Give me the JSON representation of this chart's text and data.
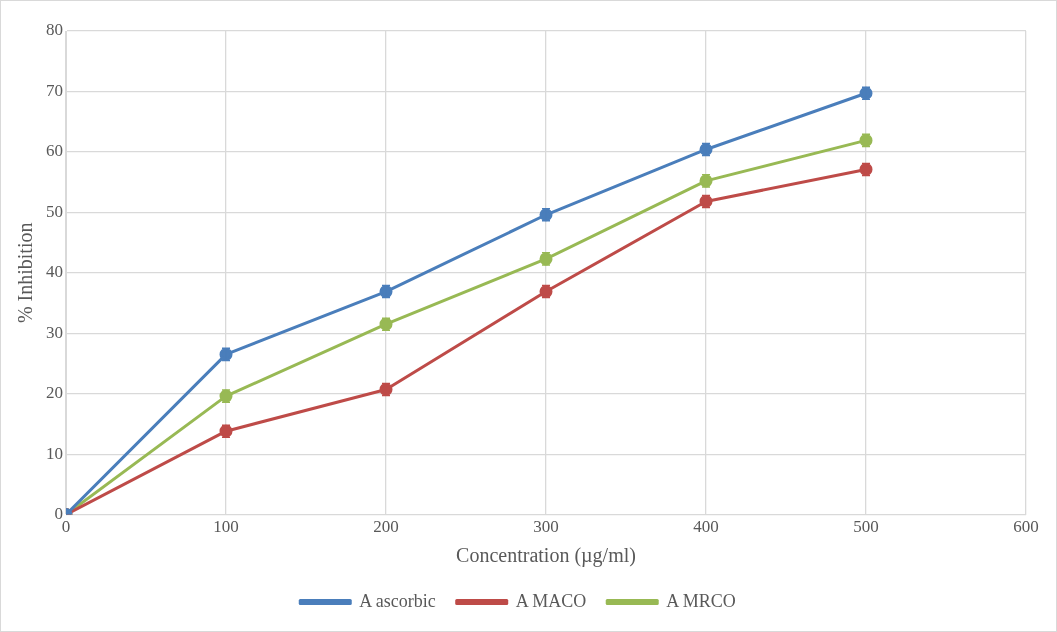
{
  "chart_data": {
    "type": "line",
    "xlabel": "Concentration (µg/ml)",
    "ylabel": "% Inhibition",
    "x": [
      0,
      100,
      200,
      300,
      400,
      500
    ],
    "series": [
      {
        "name": "A ascorbic",
        "color": "#4a7ebb",
        "values": [
          0,
          26.5,
          36.9,
          49.6,
          60.4,
          69.7
        ],
        "errors": [
          null,
          1,
          1,
          1,
          1,
          1
        ]
      },
      {
        "name": "A MACO",
        "color": "#be4b48",
        "values": [
          0,
          13.8,
          20.7,
          36.9,
          51.8,
          57.1
        ],
        "errors": [
          null,
          1,
          1,
          1,
          1,
          1
        ]
      },
      {
        "name": "A MRCO",
        "color": "#98b954",
        "values": [
          0,
          19.6,
          31.5,
          42.3,
          55.2,
          61.9
        ],
        "errors": [
          null,
          1,
          1,
          1,
          1,
          1
        ]
      }
    ],
    "xlim": [
      0,
      600
    ],
    "xticks": [
      0,
      100,
      200,
      300,
      400,
      500,
      600
    ],
    "ylim": [
      0,
      80
    ],
    "yticks": [
      0,
      10,
      20,
      30,
      40,
      50,
      60,
      70,
      80
    ],
    "grid": true,
    "legend": "bottom",
    "marker": "circle",
    "line_style": "solid"
  }
}
